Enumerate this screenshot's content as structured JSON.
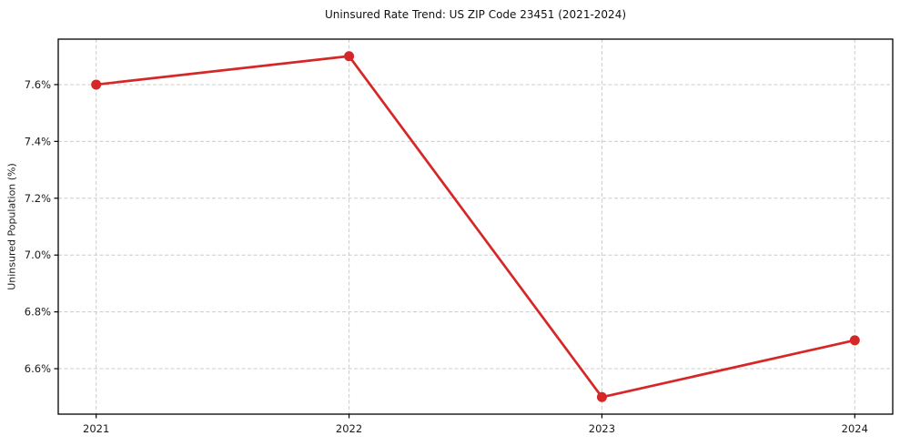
{
  "figure": {
    "background": "#ffffff"
  },
  "chart_data": {
    "type": "line",
    "title": "Uninsured Rate Trend: US ZIP Code 23451 (2021-2024)",
    "xlabel": "",
    "ylabel": "Uninsured Population (%)",
    "x": [
      2021,
      2022,
      2023,
      2024
    ],
    "x_tick_labels": [
      "2021",
      "2022",
      "2023",
      "2024"
    ],
    "series": [
      {
        "name": "Uninsured Population (%)",
        "color": "#d62728",
        "values": [
          7.6,
          7.7,
          6.5,
          6.7
        ]
      }
    ],
    "y_ticks": [
      6.6,
      6.8,
      7.0,
      7.2,
      7.4,
      7.6
    ],
    "y_tick_labels": [
      "6.6%",
      "6.8%",
      "7.0%",
      "7.2%",
      "7.4%",
      "7.6%"
    ],
    "xlim": [
      2020.85,
      2024.15
    ],
    "ylim": [
      6.44,
      7.76
    ],
    "grid": true,
    "grid_color": "#cccccc",
    "grid_dash": "4 2.5",
    "frame_color": "#000000",
    "tick_label_color": "#1a1a1a",
    "legend": "none",
    "line_width": 2.7,
    "marker_radius": 5.5
  }
}
